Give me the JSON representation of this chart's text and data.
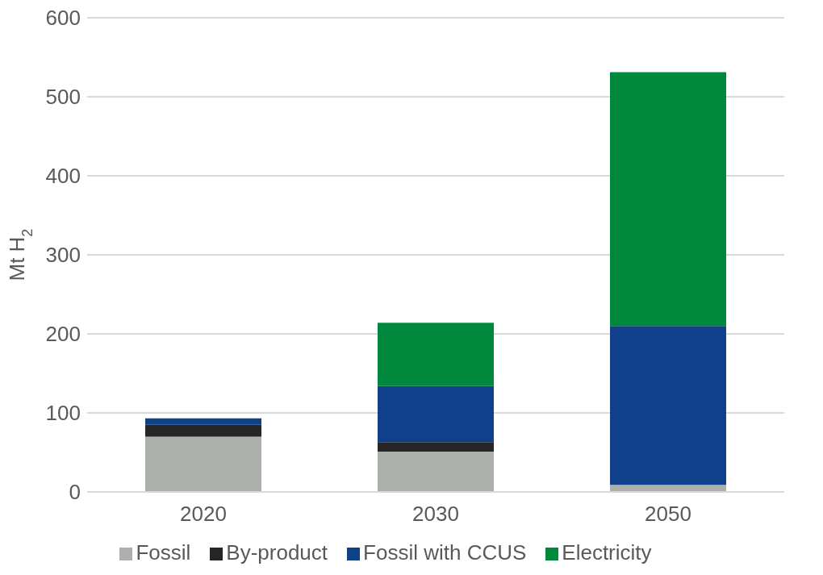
{
  "chart_data": {
    "type": "bar",
    "stacked": true,
    "ylabel": "Mt H$_{2}$",
    "categories": [
      "2020",
      "2030",
      "2050"
    ],
    "series": [
      {
        "name": "Fossil",
        "color": "#adb1ab",
        "values": [
          70,
          51,
          9
        ]
      },
      {
        "name": "By-product",
        "color": "#262626",
        "values": [
          15,
          12,
          0
        ]
      },
      {
        "name": "Fossil with CCUS",
        "color": "#11408a",
        "values": [
          8,
          71,
          201
        ]
      },
      {
        "name": "Electricity",
        "color": "#00893d",
        "values": [
          0,
          80,
          321
        ]
      }
    ],
    "ylim": [
      0,
      600
    ],
    "yticks": [
      0,
      100,
      200,
      300,
      400,
      500,
      600
    ],
    "grid": "y",
    "legend": "bottom"
  }
}
